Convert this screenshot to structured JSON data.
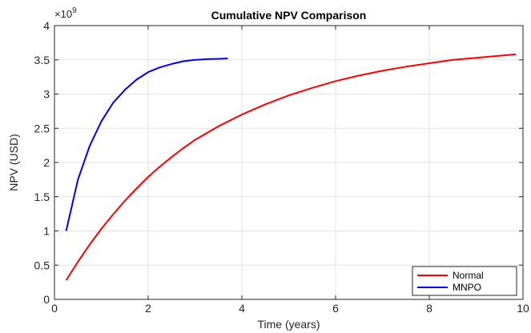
{
  "chart_data": {
    "type": "line",
    "title": "Cumulative NPV Comparison",
    "xlabel": "Time (years)",
    "ylabel": "NPV (USD)",
    "xlim": [
      0,
      10
    ],
    "ylim": [
      0,
      4
    ],
    "x_ticks": [
      "0",
      "2",
      "4",
      "6",
      "8",
      "10"
    ],
    "y_ticks": [
      "0",
      "0.5",
      "1",
      "1.5",
      "2",
      "2.5",
      "3",
      "3.5",
      "4"
    ],
    "y_exponent_base": "×10",
    "y_exponent_power": "9",
    "grid": true,
    "legend_position": "bottom-right",
    "series": [
      {
        "name": "Normal",
        "color": "#ff0000",
        "x": [
          0.25,
          0.5,
          0.75,
          1.0,
          1.25,
          1.5,
          1.75,
          2.0,
          2.25,
          2.5,
          2.75,
          3.0,
          3.5,
          4.0,
          4.5,
          5.0,
          5.5,
          6.0,
          6.5,
          7.0,
          7.5,
          8.0,
          8.5,
          9.0,
          9.5,
          9.85
        ],
        "y": [
          0.28,
          0.55,
          0.8,
          1.03,
          1.24,
          1.44,
          1.62,
          1.79,
          1.94,
          2.08,
          2.21,
          2.33,
          2.53,
          2.7,
          2.85,
          2.98,
          3.09,
          3.19,
          3.27,
          3.34,
          3.4,
          3.45,
          3.5,
          3.53,
          3.56,
          3.58
        ]
      },
      {
        "name": "MNPO",
        "color": "#0000ff",
        "x": [
          0.25,
          0.5,
          0.75,
          1.0,
          1.25,
          1.5,
          1.75,
          2.0,
          2.25,
          2.5,
          2.75,
          3.0,
          3.25,
          3.5,
          3.7
        ],
        "y": [
          1.0,
          1.75,
          2.24,
          2.6,
          2.87,
          3.06,
          3.21,
          3.32,
          3.39,
          3.44,
          3.48,
          3.5,
          3.51,
          3.515,
          3.52
        ]
      }
    ]
  }
}
